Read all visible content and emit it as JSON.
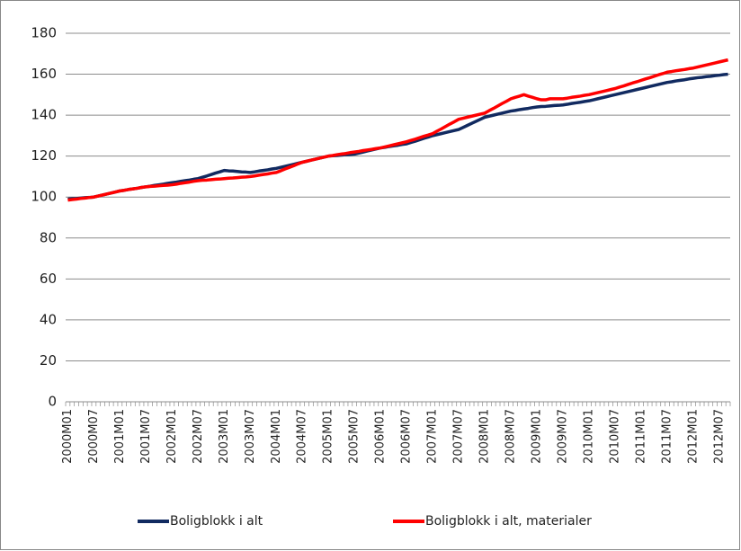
{
  "chart_data": {
    "type": "line",
    "categories": [
      "2000M01",
      null,
      null,
      null,
      null,
      null,
      "2000M07",
      null,
      null,
      null,
      null,
      null,
      "2001M01",
      null,
      null,
      null,
      null,
      null,
      "2001M07",
      null,
      null,
      null,
      null,
      null,
      "2002M01",
      null,
      null,
      null,
      null,
      null,
      "2002M07",
      null,
      null,
      null,
      null,
      null,
      "2003M01",
      null,
      null,
      null,
      null,
      null,
      "2003M07",
      null,
      null,
      null,
      null,
      null,
      "2004M01",
      null,
      null,
      null,
      null,
      null,
      "2004M07",
      null,
      null,
      null,
      null,
      null,
      "2005M01",
      null,
      null,
      null,
      null,
      null,
      "2005M07",
      null,
      null,
      null,
      null,
      null,
      "2006M01",
      null,
      null,
      null,
      null,
      null,
      "2006M07",
      null,
      null,
      null,
      null,
      null,
      "2007M01",
      null,
      null,
      null,
      null,
      null,
      "2007M07",
      null,
      null,
      null,
      null,
      null,
      "2008M01",
      null,
      null,
      null,
      null,
      null,
      "2008M07",
      null,
      null,
      null,
      null,
      null,
      "2009M01",
      null,
      null,
      null,
      null,
      null,
      "2009M07",
      null,
      null,
      null,
      null,
      null,
      "2010M01",
      null,
      null,
      null,
      null,
      null,
      "2010M07",
      null,
      null,
      null,
      null,
      null,
      "2011M01",
      null,
      null,
      null,
      null,
      null,
      "2011M07",
      null,
      null,
      null,
      null,
      null,
      "2012M01",
      null,
      null,
      null,
      null,
      null,
      "2012M07",
      null,
      null
    ],
    "series": [
      {
        "name": "Boligblokk i alt",
        "color": "#112a60",
        "values": [
          99,
          99.2,
          99.3,
          99.5,
          99.7,
          99.8,
          100,
          100.5,
          101,
          101.5,
          102,
          102.5,
          103,
          103.3,
          103.7,
          104,
          104.3,
          104.7,
          105,
          105.3,
          105.7,
          106,
          106.3,
          106.7,
          107,
          107.3,
          107.7,
          108,
          108.3,
          108.7,
          109,
          109.7,
          110.3,
          111,
          111.7,
          112.3,
          113,
          112.8,
          112.7,
          112.5,
          112.3,
          112.2,
          112,
          112.3,
          112.7,
          113,
          113.3,
          113.7,
          114,
          114.5,
          115,
          115.5,
          116,
          116.5,
          117,
          117.5,
          118,
          118.5,
          119,
          119.5,
          120,
          120.2,
          120.3,
          120.5,
          120.7,
          120.8,
          121,
          121.5,
          122,
          122.5,
          123,
          123.5,
          124,
          124.3,
          124.7,
          125,
          125.3,
          125.7,
          126,
          126.7,
          127.3,
          128,
          128.7,
          129.3,
          130,
          130.5,
          131,
          131.5,
          132,
          132.5,
          133,
          134,
          135,
          136,
          137,
          138,
          139,
          139.5,
          140,
          140.5,
          141,
          141.5,
          142,
          142.3,
          142.7,
          143,
          143.3,
          143.7,
          144,
          144.2,
          144.3,
          144.5,
          144.7,
          144.8,
          145,
          145.3,
          145.7,
          146,
          146.3,
          146.7,
          147,
          147.5,
          148,
          148.5,
          149,
          149.5,
          150,
          150.5,
          151,
          151.5,
          152,
          152.5,
          153,
          153.5,
          154,
          154.5,
          155,
          155.5,
          156,
          156.3,
          156.7,
          157,
          157.3,
          157.7,
          158,
          158.3,
          158.5,
          158.8,
          159,
          159.3,
          159.5,
          159.8,
          160
        ]
      },
      {
        "name": "Boligblokk i alt, materialer",
        "color": "#ff0000",
        "values": [
          98.5,
          98.8,
          99,
          99.3,
          99.5,
          99.8,
          100,
          100.5,
          101,
          101.5,
          102,
          102.5,
          103,
          103.3,
          103.7,
          104,
          104.3,
          104.7,
          105,
          105.2,
          105.3,
          105.5,
          105.7,
          105.8,
          106,
          106.3,
          106.7,
          107,
          107.3,
          107.7,
          108,
          108.2,
          108.3,
          108.5,
          108.7,
          108.8,
          109,
          109.2,
          109.3,
          109.5,
          109.7,
          109.8,
          110,
          110.3,
          110.7,
          111,
          111.3,
          111.7,
          112,
          112.8,
          113.7,
          114.5,
          115.3,
          116.2,
          117,
          117.5,
          118,
          118.5,
          119,
          119.5,
          120,
          120.3,
          120.7,
          121,
          121.3,
          121.7,
          122,
          122.3,
          122.7,
          123,
          123.3,
          123.7,
          124,
          124.5,
          125,
          125.5,
          126,
          126.5,
          127,
          127.7,
          128.3,
          129,
          129.7,
          130.3,
          131,
          132.2,
          133.3,
          134.5,
          135.7,
          136.8,
          138,
          138.5,
          139,
          139.5,
          140,
          140.5,
          141,
          142.2,
          143.3,
          144.5,
          145.7,
          146.8,
          148,
          148.7,
          149.3,
          150,
          149.3,
          148.7,
          148,
          147.5,
          147.5,
          148,
          148,
          148,
          148,
          148.3,
          148.7,
          149,
          149.3,
          149.7,
          150,
          150.5,
          151,
          151.5,
          152,
          152.5,
          153,
          153.7,
          154.3,
          155,
          155.7,
          156.3,
          157,
          157.7,
          158.3,
          159,
          159.7,
          160.3,
          161,
          161.3,
          161.7,
          162,
          162.3,
          162.7,
          163,
          163.5,
          164,
          164.5,
          165,
          165.5,
          166,
          166.5,
          167
        ]
      }
    ],
    "ylim": [
      0,
      180
    ],
    "yticks": [
      0,
      20,
      40,
      60,
      80,
      100,
      120,
      140,
      160,
      180
    ],
    "grid": true,
    "legend": "bottom"
  }
}
